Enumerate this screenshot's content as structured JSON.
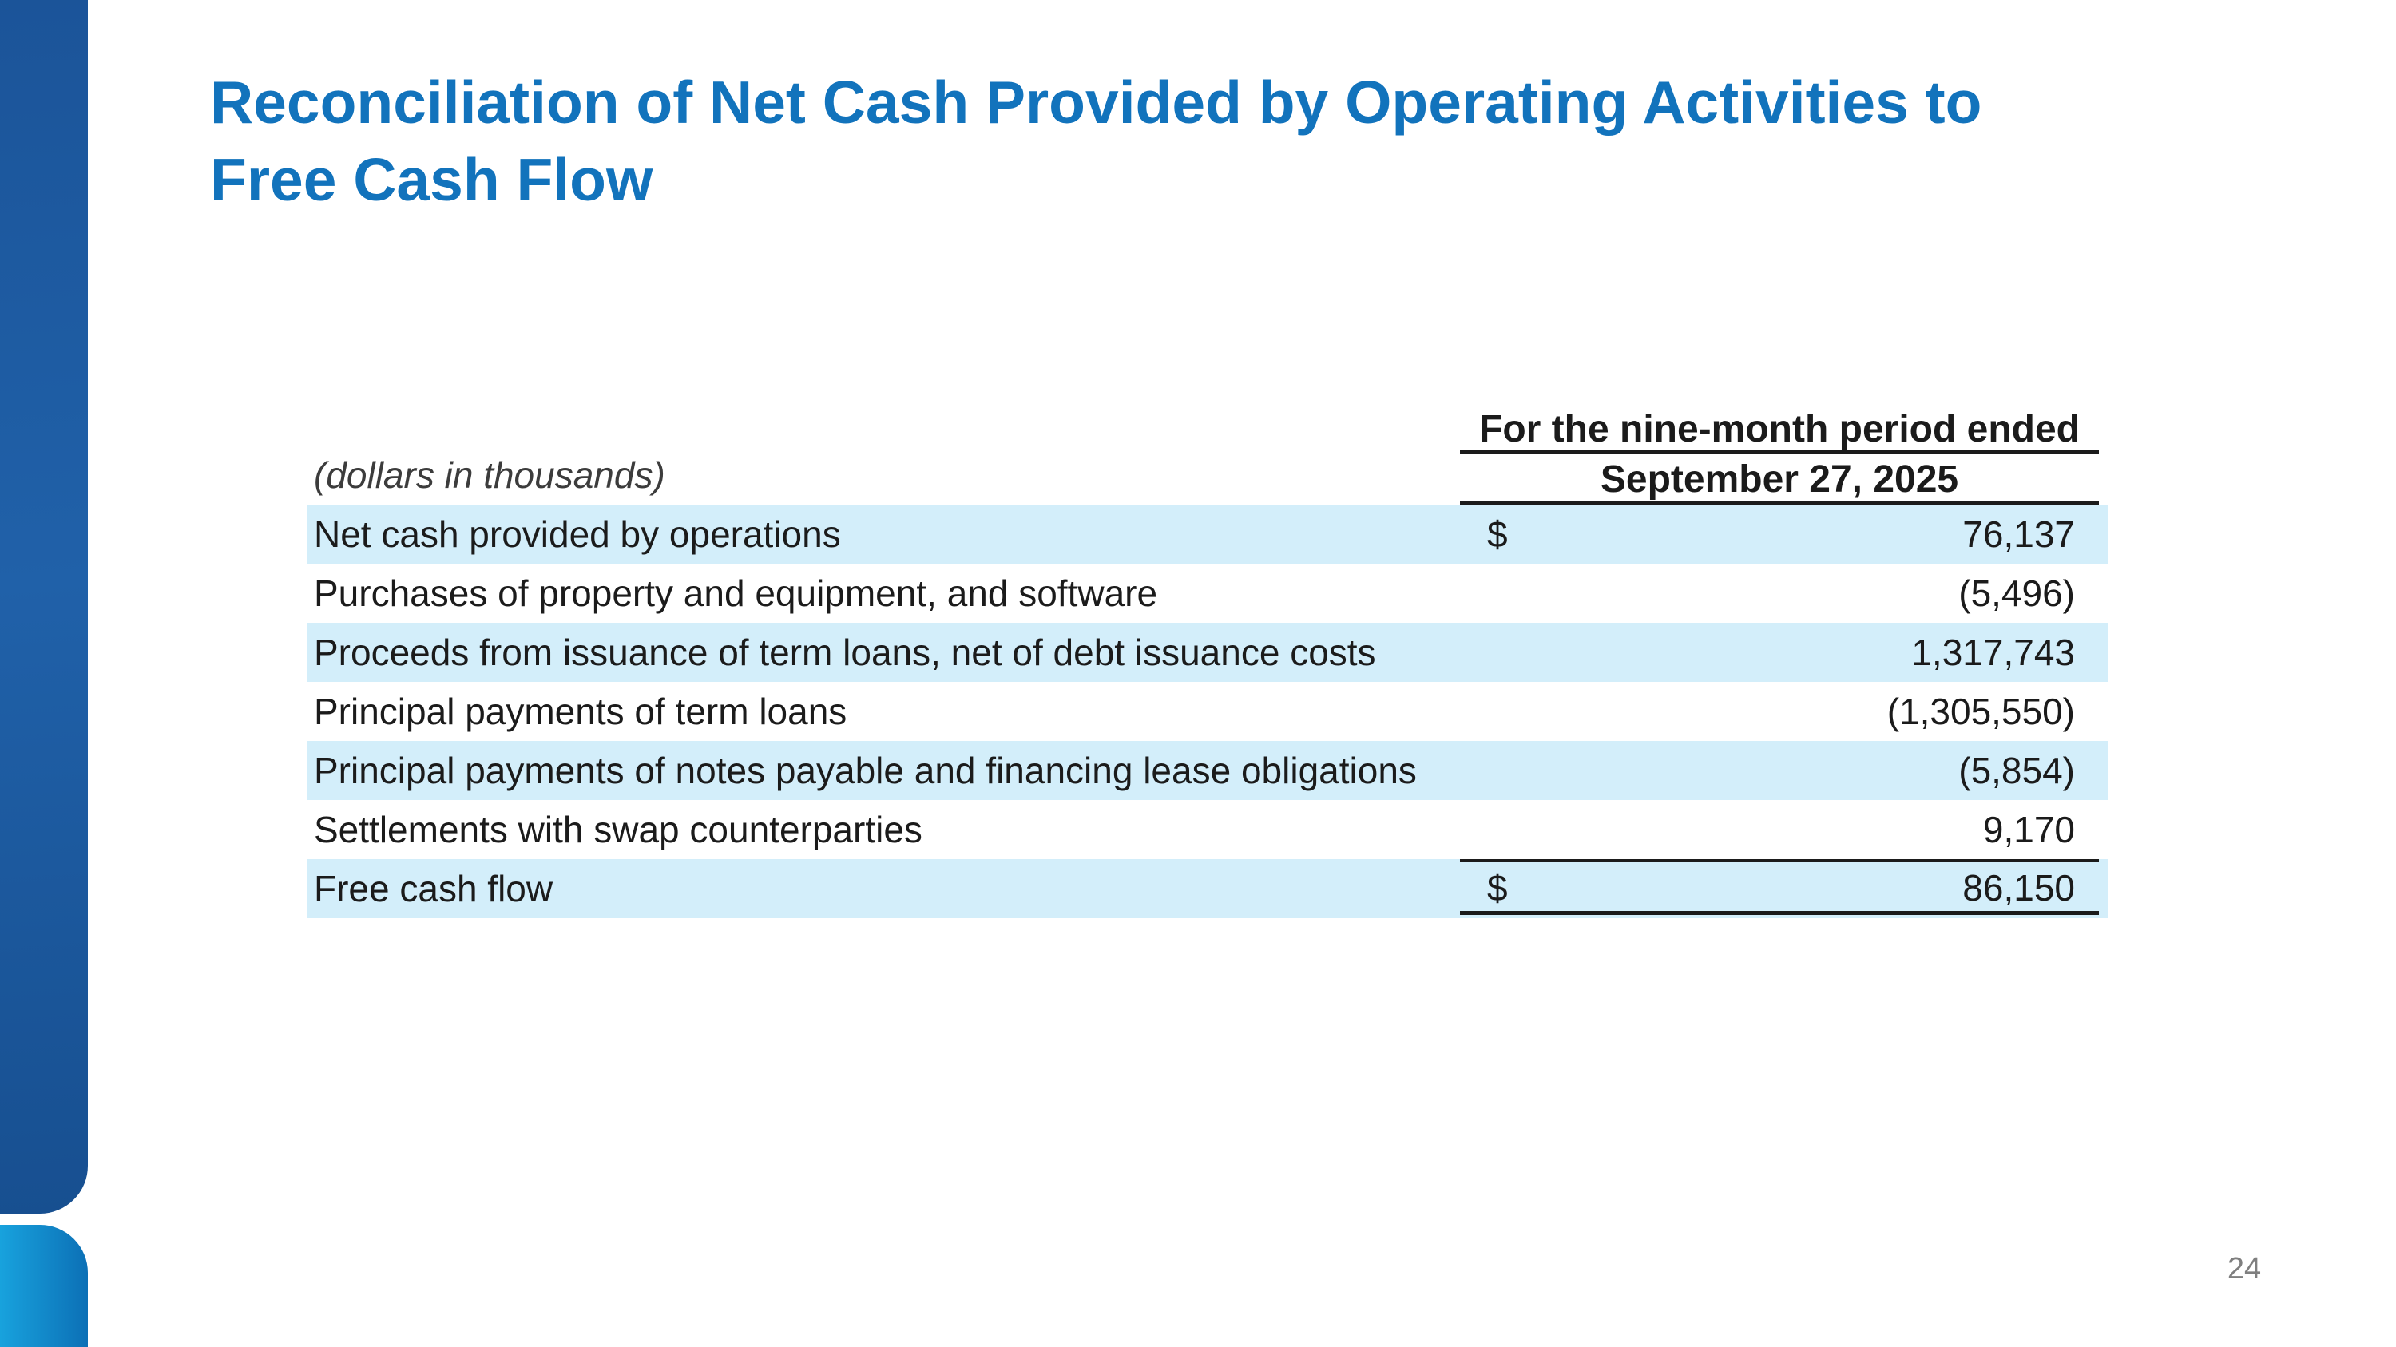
{
  "slide": {
    "title_line1": "Reconciliation of Net Cash Provided by Operating Activities to",
    "title_line2": "Free Cash Flow",
    "page_number": "24",
    "colors": {
      "title_blue": "#1273BC",
      "row_highlight": "#D3EEFA",
      "sidebar_dark": "#2061A9",
      "sidebar_light_left": "#18A2DD",
      "sidebar_light_right": "#0C70B6",
      "table_rule": "#1B1B1B",
      "page_number_gray": "#7F7F7F"
    }
  },
  "table": {
    "note": "(dollars in thousands)",
    "period_header": "For the nine-month period ended",
    "date_header": "September 27, 2025",
    "rows": [
      {
        "label": "Net cash provided by operations",
        "currency": "$",
        "value": "76,137",
        "highlighted": true,
        "total": false
      },
      {
        "label": "Purchases of property and equipment, and software",
        "currency": "",
        "value": "(5,496)",
        "highlighted": false,
        "total": false
      },
      {
        "label": "Proceeds from issuance of term loans, net of debt issuance costs",
        "currency": "",
        "value": "1,317,743",
        "highlighted": true,
        "total": false
      },
      {
        "label": "Principal payments of term loans",
        "currency": "",
        "value": "(1,305,550)",
        "highlighted": false,
        "total": false
      },
      {
        "label": "Principal payments of notes payable and financing lease obligations",
        "currency": "",
        "value": "(5,854)",
        "highlighted": true,
        "total": false
      },
      {
        "label": "Settlements with swap counterparties",
        "currency": "",
        "value": "9,170",
        "highlighted": false,
        "total": false
      },
      {
        "label": "Free cash flow",
        "currency": "$",
        "value": "86,150",
        "highlighted": true,
        "total": true
      }
    ]
  }
}
